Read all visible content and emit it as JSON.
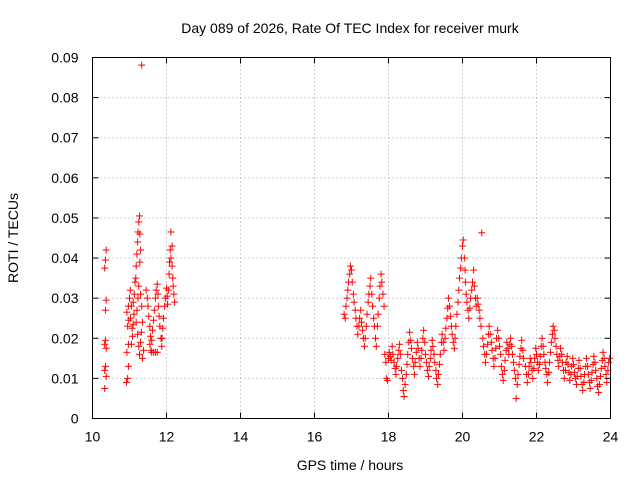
{
  "chart_data": {
    "type": "scatter",
    "title": "Day 089 of 2026, Rate Of TEC Index for receiver murk",
    "xlabel": "GPS time / hours",
    "ylabel": "ROTI / TECUs",
    "xlim": [
      10,
      24
    ],
    "ylim": [
      0,
      0.09
    ],
    "x_ticks": [
      "10",
      "12",
      "14",
      "16",
      "18",
      "20",
      "22",
      "24"
    ],
    "y_ticks": [
      "0",
      "0.01",
      "0.02",
      "0.03",
      "0.04",
      "0.05",
      "0.06",
      "0.07",
      "0.08",
      "0.09"
    ],
    "grid": true,
    "marker": "+",
    "color": "#ff0000",
    "points": [
      [
        10.33,
        0.0075
      ],
      [
        10.33,
        0.012
      ],
      [
        10.35,
        0.013
      ],
      [
        10.33,
        0.0185
      ],
      [
        10.35,
        0.0195
      ],
      [
        10.35,
        0.027
      ],
      [
        10.37,
        0.0295
      ],
      [
        10.33,
        0.0375
      ],
      [
        10.35,
        0.0395
      ],
      [
        10.37,
        0.042
      ],
      [
        10.37,
        0.0105
      ],
      [
        10.37,
        0.0175
      ],
      [
        10.92,
        0.009
      ],
      [
        10.95,
        0.01
      ],
      [
        10.97,
        0.013
      ],
      [
        10.93,
        0.0165
      ],
      [
        10.97,
        0.0185
      ],
      [
        10.95,
        0.023
      ],
      [
        10.98,
        0.0245
      ],
      [
        10.93,
        0.0265
      ],
      [
        10.97,
        0.028
      ],
      [
        11.0,
        0.03
      ],
      [
        11.02,
        0.032
      ],
      [
        11.05,
        0.028
      ],
      [
        11.03,
        0.025
      ],
      [
        11.07,
        0.0225
      ],
      [
        11.08,
        0.0205
      ],
      [
        11.05,
        0.0185
      ],
      [
        11.1,
        0.0235
      ],
      [
        11.12,
        0.026
      ],
      [
        11.1,
        0.029
      ],
      [
        11.13,
        0.031
      ],
      [
        11.15,
        0.034
      ],
      [
        11.17,
        0.035
      ],
      [
        11.18,
        0.038
      ],
      [
        11.2,
        0.041
      ],
      [
        11.22,
        0.044
      ],
      [
        11.23,
        0.0465
      ],
      [
        11.25,
        0.049
      ],
      [
        11.27,
        0.0505
      ],
      [
        11.28,
        0.046
      ],
      [
        11.3,
        0.042
      ],
      [
        11.28,
        0.039
      ],
      [
        11.25,
        0.033
      ],
      [
        11.23,
        0.03
      ],
      [
        11.2,
        0.027
      ],
      [
        11.18,
        0.024
      ],
      [
        11.22,
        0.021
      ],
      [
        11.25,
        0.018
      ],
      [
        11.27,
        0.016
      ],
      [
        11.3,
        0.019
      ],
      [
        11.32,
        0.0215
      ],
      [
        11.35,
        0.024
      ],
      [
        11.33,
        0.028
      ],
      [
        11.3,
        0.031
      ],
      [
        11.35,
        0.015
      ],
      [
        11.38,
        0.017
      ],
      [
        11.33,
        0.0881
      ],
      [
        11.45,
        0.032
      ],
      [
        11.48,
        0.03
      ],
      [
        11.5,
        0.028
      ],
      [
        11.52,
        0.0255
      ],
      [
        11.55,
        0.023
      ],
      [
        11.57,
        0.0205
      ],
      [
        11.55,
        0.0185
      ],
      [
        11.58,
        0.017
      ],
      [
        11.6,
        0.0195
      ],
      [
        11.62,
        0.022
      ],
      [
        11.65,
        0.0245
      ],
      [
        11.67,
        0.027
      ],
      [
        11.7,
        0.03
      ],
      [
        11.72,
        0.032
      ],
      [
        11.75,
        0.0335
      ],
      [
        11.77,
        0.031
      ],
      [
        11.78,
        0.028
      ],
      [
        11.8,
        0.0255
      ],
      [
        11.82,
        0.023
      ],
      [
        11.85,
        0.02
      ],
      [
        11.87,
        0.018
      ],
      [
        11.88,
        0.02
      ],
      [
        11.9,
        0.0225
      ],
      [
        11.92,
        0.025
      ],
      [
        11.95,
        0.028
      ],
      [
        11.97,
        0.03
      ],
      [
        12.0,
        0.0325
      ],
      [
        12.02,
        0.0305
      ],
      [
        12.03,
        0.0285
      ],
      [
        12.05,
        0.032
      ],
      [
        12.07,
        0.036
      ],
      [
        12.08,
        0.039
      ],
      [
        12.1,
        0.042
      ],
      [
        12.12,
        0.0465
      ],
      [
        12.12,
        0.04
      ],
      [
        12.15,
        0.038
      ],
      [
        12.17,
        0.035
      ],
      [
        12.18,
        0.033
      ],
      [
        12.2,
        0.031
      ],
      [
        12.22,
        0.029
      ],
      [
        12.15,
        0.043
      ],
      [
        11.6,
        0.0165
      ],
      [
        11.65,
        0.0165
      ],
      [
        11.7,
        0.0165
      ],
      [
        11.75,
        0.0165
      ],
      [
        16.8,
        0.026
      ],
      [
        16.83,
        0.025
      ],
      [
        16.85,
        0.028
      ],
      [
        16.88,
        0.03
      ],
      [
        16.9,
        0.032
      ],
      [
        16.92,
        0.034
      ],
      [
        16.95,
        0.036
      ],
      [
        16.97,
        0.038
      ],
      [
        17.0,
        0.037
      ],
      [
        17.02,
        0.034
      ],
      [
        17.05,
        0.031
      ],
      [
        17.07,
        0.029
      ],
      [
        17.1,
        0.027
      ],
      [
        17.12,
        0.025
      ],
      [
        17.15,
        0.023
      ],
      [
        17.17,
        0.021
      ],
      [
        17.2,
        0.023
      ],
      [
        17.22,
        0.025
      ],
      [
        17.25,
        0.027
      ],
      [
        17.27,
        0.024
      ],
      [
        17.3,
        0.022
      ],
      [
        17.32,
        0.02
      ],
      [
        17.35,
        0.018
      ],
      [
        17.37,
        0.02
      ],
      [
        17.4,
        0.023
      ],
      [
        17.42,
        0.026
      ],
      [
        17.45,
        0.029
      ],
      [
        17.47,
        0.031
      ],
      [
        17.5,
        0.033
      ],
      [
        17.52,
        0.035
      ],
      [
        17.55,
        0.031
      ],
      [
        17.57,
        0.028
      ],
      [
        17.6,
        0.025
      ],
      [
        17.62,
        0.023
      ],
      [
        17.65,
        0.02
      ],
      [
        17.67,
        0.018
      ],
      [
        17.7,
        0.023
      ],
      [
        17.72,
        0.026
      ],
      [
        17.75,
        0.03
      ],
      [
        17.77,
        0.033
      ],
      [
        17.8,
        0.036
      ],
      [
        17.82,
        0.034
      ],
      [
        17.85,
        0.031
      ],
      [
        17.88,
        0.028
      ],
      [
        17.9,
        0.016
      ],
      [
        17.93,
        0.014
      ],
      [
        17.95,
        0.01
      ],
      [
        17.97,
        0.0095
      ],
      [
        18.0,
        0.015
      ],
      [
        18.02,
        0.0165
      ],
      [
        18.05,
        0.0155
      ],
      [
        18.07,
        0.0145
      ],
      [
        18.1,
        0.018
      ],
      [
        18.12,
        0.016
      ],
      [
        18.15,
        0.014
      ],
      [
        18.18,
        0.0125
      ],
      [
        18.2,
        0.011
      ],
      [
        18.22,
        0.013
      ],
      [
        18.25,
        0.015
      ],
      [
        18.28,
        0.017
      ],
      [
        18.3,
        0.0185
      ],
      [
        18.32,
        0.016
      ],
      [
        18.35,
        0.012
      ],
      [
        18.38,
        0.01
      ],
      [
        18.4,
        0.007
      ],
      [
        18.42,
        0.0055
      ],
      [
        18.45,
        0.0085
      ],
      [
        18.48,
        0.011
      ],
      [
        18.5,
        0.0135
      ],
      [
        18.52,
        0.016
      ],
      [
        18.55,
        0.019
      ],
      [
        18.57,
        0.0215
      ],
      [
        18.6,
        0.0195
      ],
      [
        18.62,
        0.0175
      ],
      [
        18.65,
        0.015
      ],
      [
        18.68,
        0.013
      ],
      [
        18.7,
        0.011
      ],
      [
        18.72,
        0.014
      ],
      [
        18.75,
        0.0165
      ],
      [
        18.78,
        0.019
      ],
      [
        18.8,
        0.0175
      ],
      [
        18.83,
        0.015
      ],
      [
        18.85,
        0.013
      ],
      [
        18.88,
        0.015
      ],
      [
        18.9,
        0.017
      ],
      [
        18.93,
        0.02
      ],
      [
        18.95,
        0.022
      ],
      [
        18.98,
        0.019
      ],
      [
        19.0,
        0.016
      ],
      [
        19.03,
        0.014
      ],
      [
        19.05,
        0.012
      ],
      [
        19.08,
        0.0105
      ],
      [
        19.1,
        0.013
      ],
      [
        19.13,
        0.015
      ],
      [
        19.15,
        0.017
      ],
      [
        19.18,
        0.0195
      ],
      [
        19.2,
        0.018
      ],
      [
        19.23,
        0.016
      ],
      [
        19.25,
        0.014
      ],
      [
        19.28,
        0.012
      ],
      [
        19.3,
        0.01
      ],
      [
        19.33,
        0.0085
      ],
      [
        19.35,
        0.011
      ],
      [
        19.38,
        0.0135
      ],
      [
        19.4,
        0.016
      ],
      [
        19.43,
        0.019
      ],
      [
        19.45,
        0.021
      ],
      [
        19.48,
        0.019
      ],
      [
        19.5,
        0.017
      ],
      [
        19.53,
        0.02
      ],
      [
        19.55,
        0.0225
      ],
      [
        19.58,
        0.025
      ],
      [
        19.6,
        0.0275
      ],
      [
        19.62,
        0.03
      ],
      [
        19.65,
        0.028
      ],
      [
        19.68,
        0.0255
      ],
      [
        19.7,
        0.023
      ],
      [
        19.72,
        0.021
      ],
      [
        19.75,
        0.019
      ],
      [
        19.78,
        0.0175
      ],
      [
        19.8,
        0.02
      ],
      [
        19.82,
        0.023
      ],
      [
        19.85,
        0.026
      ],
      [
        19.88,
        0.029
      ],
      [
        19.9,
        0.032
      ],
      [
        19.92,
        0.035
      ],
      [
        19.95,
        0.0375
      ],
      [
        19.97,
        0.04
      ],
      [
        20.0,
        0.043
      ],
      [
        20.02,
        0.0445
      ],
      [
        20.05,
        0.04
      ],
      [
        20.07,
        0.037
      ],
      [
        20.08,
        0.034
      ],
      [
        20.1,
        0.031
      ],
      [
        20.12,
        0.029
      ],
      [
        20.15,
        0.027
      ],
      [
        20.17,
        0.025
      ],
      [
        20.2,
        0.0275
      ],
      [
        20.22,
        0.03
      ],
      [
        20.25,
        0.032
      ],
      [
        20.27,
        0.034
      ],
      [
        20.3,
        0.037
      ],
      [
        20.32,
        0.033
      ],
      [
        20.35,
        0.03
      ],
      [
        20.37,
        0.028
      ],
      [
        20.4,
        0.03
      ],
      [
        20.42,
        0.0285
      ],
      [
        20.45,
        0.027
      ],
      [
        20.47,
        0.025
      ],
      [
        20.5,
        0.023
      ],
      [
        20.52,
        0.0463
      ],
      [
        20.55,
        0.02
      ],
      [
        20.57,
        0.018
      ],
      [
        20.6,
        0.016
      ],
      [
        20.62,
        0.014
      ],
      [
        20.65,
        0.016
      ],
      [
        20.68,
        0.0185
      ],
      [
        20.7,
        0.021
      ],
      [
        20.72,
        0.023
      ],
      [
        20.75,
        0.021
      ],
      [
        20.78,
        0.019
      ],
      [
        20.8,
        0.017
      ],
      [
        20.83,
        0.015
      ],
      [
        20.85,
        0.013
      ],
      [
        20.88,
        0.015
      ],
      [
        20.9,
        0.0175
      ],
      [
        20.92,
        0.02
      ],
      [
        20.95,
        0.022
      ],
      [
        20.98,
        0.02
      ],
      [
        21.0,
        0.018
      ],
      [
        21.03,
        0.016
      ],
      [
        21.05,
        0.013
      ],
      [
        21.08,
        0.011
      ],
      [
        21.1,
        0.0095
      ],
      [
        21.13,
        0.012
      ],
      [
        21.15,
        0.0145
      ],
      [
        21.18,
        0.017
      ],
      [
        21.2,
        0.019
      ],
      [
        21.23,
        0.0175
      ],
      [
        21.25,
        0.016
      ],
      [
        21.28,
        0.0185
      ],
      [
        21.3,
        0.02
      ],
      [
        21.33,
        0.018
      ],
      [
        21.35,
        0.016
      ],
      [
        21.38,
        0.014
      ],
      [
        21.4,
        0.012
      ],
      [
        21.43,
        0.01
      ],
      [
        21.45,
        0.005
      ],
      [
        21.48,
        0.0085
      ],
      [
        21.5,
        0.011
      ],
      [
        21.53,
        0.0135
      ],
      [
        21.55,
        0.0155
      ],
      [
        21.58,
        0.0175
      ],
      [
        21.6,
        0.0195
      ],
      [
        21.63,
        0.017
      ],
      [
        21.65,
        0.015
      ],
      [
        21.7,
        0.013
      ],
      [
        21.73,
        0.011
      ],
      [
        21.75,
        0.009
      ],
      [
        21.78,
        0.011
      ],
      [
        21.8,
        0.013
      ],
      [
        21.83,
        0.015
      ],
      [
        21.85,
        0.014
      ],
      [
        21.88,
        0.012
      ],
      [
        21.9,
        0.01
      ],
      [
        21.93,
        0.0125
      ],
      [
        21.95,
        0.015
      ],
      [
        21.98,
        0.0175
      ],
      [
        22.0,
        0.016
      ],
      [
        22.03,
        0.014
      ],
      [
        22.05,
        0.012
      ],
      [
        22.08,
        0.0135
      ],
      [
        22.1,
        0.0155
      ],
      [
        22.13,
        0.018
      ],
      [
        22.15,
        0.02
      ],
      [
        22.18,
        0.018
      ],
      [
        22.2,
        0.016
      ],
      [
        22.23,
        0.014
      ],
      [
        22.25,
        0.0125
      ],
      [
        22.28,
        0.011
      ],
      [
        22.3,
        0.009
      ],
      [
        22.33,
        0.0115
      ],
      [
        22.35,
        0.014
      ],
      [
        22.38,
        0.0165
      ],
      [
        22.4,
        0.019
      ],
      [
        22.43,
        0.021
      ],
      [
        22.45,
        0.023
      ],
      [
        22.48,
        0.022
      ],
      [
        22.5,
        0.02
      ],
      [
        22.53,
        0.018
      ],
      [
        22.55,
        0.016
      ],
      [
        22.58,
        0.0145
      ],
      [
        22.6,
        0.013
      ],
      [
        22.63,
        0.0155
      ],
      [
        22.65,
        0.0175
      ],
      [
        22.68,
        0.016
      ],
      [
        22.7,
        0.014
      ],
      [
        22.73,
        0.012
      ],
      [
        22.75,
        0.01
      ],
      [
        22.78,
        0.012
      ],
      [
        22.8,
        0.014
      ],
      [
        22.83,
        0.0155
      ],
      [
        22.85,
        0.0135
      ],
      [
        22.88,
        0.0115
      ],
      [
        22.9,
        0.0095
      ],
      [
        22.93,
        0.011
      ],
      [
        22.95,
        0.013
      ],
      [
        22.98,
        0.015
      ],
      [
        23.0,
        0.0135
      ],
      [
        23.03,
        0.0115
      ],
      [
        23.05,
        0.01
      ],
      [
        23.08,
        0.0085
      ],
      [
        23.1,
        0.0105
      ],
      [
        23.13,
        0.0125
      ],
      [
        23.15,
        0.0145
      ],
      [
        23.18,
        0.0125
      ],
      [
        23.2,
        0.0105
      ],
      [
        23.23,
        0.0085
      ],
      [
        23.25,
        0.007
      ],
      [
        23.28,
        0.009
      ],
      [
        23.3,
        0.011
      ],
      [
        23.33,
        0.013
      ],
      [
        23.35,
        0.015
      ],
      [
        23.38,
        0.013
      ],
      [
        23.4,
        0.011
      ],
      [
        23.43,
        0.009
      ],
      [
        23.45,
        0.0075
      ],
      [
        23.48,
        0.0095
      ],
      [
        23.5,
        0.0115
      ],
      [
        23.53,
        0.0135
      ],
      [
        23.55,
        0.0155
      ],
      [
        23.58,
        0.014
      ],
      [
        23.6,
        0.012
      ],
      [
        23.63,
        0.01
      ],
      [
        23.65,
        0.008
      ],
      [
        23.68,
        0.0065
      ],
      [
        23.7,
        0.0085
      ],
      [
        23.73,
        0.0105
      ],
      [
        23.75,
        0.0125
      ],
      [
        23.78,
        0.0145
      ],
      [
        23.8,
        0.0165
      ],
      [
        23.83,
        0.015
      ],
      [
        23.85,
        0.013
      ],
      [
        23.88,
        0.011
      ],
      [
        23.9,
        0.009
      ],
      [
        23.93,
        0.012
      ],
      [
        23.95,
        0.014
      ],
      [
        23.98,
        0.015
      ]
    ]
  }
}
